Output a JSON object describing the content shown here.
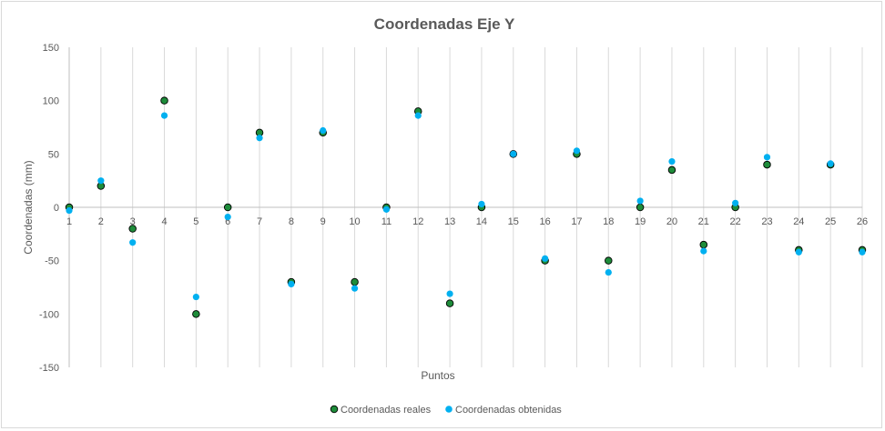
{
  "chart_data": {
    "type": "scatter",
    "title": "Coordenadas Eje Y",
    "xlabel": "Puntos",
    "ylabel": "Coordenadas (mm)",
    "ylim": [
      -150,
      150
    ],
    "yticks": [
      "150",
      "100",
      "50",
      "0",
      "-50",
      "-100",
      "-150"
    ],
    "x": [
      "1",
      "2",
      "3",
      "4",
      "5",
      "6",
      "7",
      "8",
      "9",
      "10",
      "11",
      "12",
      "13",
      "14",
      "15",
      "16",
      "17",
      "18",
      "19",
      "20",
      "21",
      "22",
      "23",
      "24",
      "25",
      "26"
    ],
    "grid": "vertical",
    "legend_position": "bottom",
    "series": [
      {
        "name": "Coordenadas reales",
        "color": "#1e8c3a",
        "marker_edge": "#000000",
        "values": [
          0,
          20,
          -20,
          100,
          -100,
          0,
          70,
          -70,
          70,
          -70,
          0,
          90,
          -90,
          0,
          50,
          -50,
          50,
          -50,
          0,
          35,
          -35,
          0,
          40,
          -40,
          40,
          -40
        ]
      },
      {
        "name": "Coordenadas obtenidas",
        "color": "#00b0f0",
        "values": [
          -3,
          25,
          -33,
          86,
          -84,
          -9,
          65,
          -72,
          72,
          -76,
          -2,
          86,
          -81,
          3,
          50,
          -48,
          53,
          -61,
          6,
          43,
          -41,
          4,
          47,
          -42,
          41,
          -42
        ]
      }
    ]
  }
}
